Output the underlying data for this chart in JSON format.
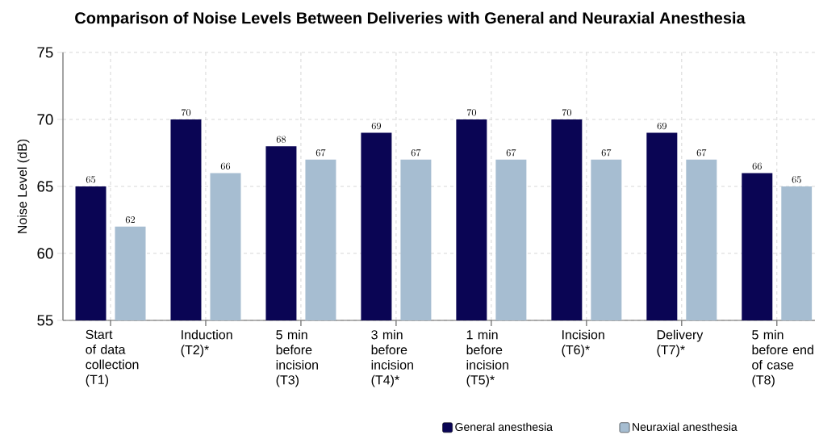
{
  "chart_data": {
    "type": "bar",
    "title": "Comparison of Noise Levels Between Deliveries with General and Neuraxial Anesthesia",
    "ylabel": "Noise Level (dB)",
    "categories": [
      "Start of data collection (T1)",
      "Induction (T2)*",
      "5 min before incision (T3)",
      "3 min before incision (T4)*",
      "1 min before incision (T5)*",
      "Incision (T6)*",
      "Delivery (T7)*",
      "5 min before end of case (T8)"
    ],
    "series": [
      {
        "name": "General anesthesia",
        "color": "#0a0554",
        "values": [
          65,
          70,
          68,
          69,
          70,
          70,
          69,
          66
        ]
      },
      {
        "name": "Neuraxial anesthesia",
        "color": "#a6bdd1",
        "values": [
          62,
          66,
          67,
          67,
          67,
          67,
          67,
          65
        ]
      }
    ],
    "ylim": [
      55,
      75
    ],
    "yticks": [
      55,
      60,
      65,
      70,
      75
    ],
    "grid": true,
    "legend": "bottom right",
    "data_labels": true
  }
}
